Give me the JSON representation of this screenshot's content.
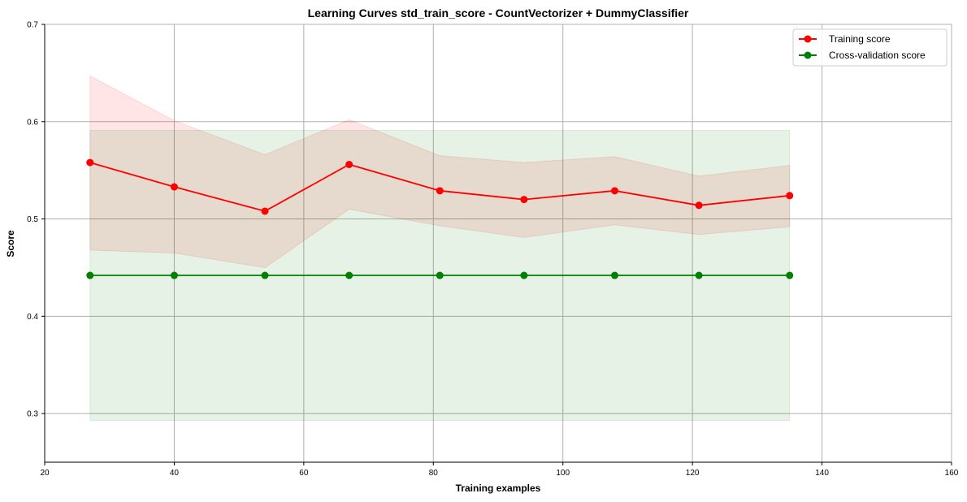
{
  "chart_data": {
    "type": "line",
    "title": "Learning Curves std_train_score - CountVectorizer + DummyClassifier",
    "xlabel": "Training examples",
    "ylabel": "Score",
    "xlim": [
      20,
      160
    ],
    "ylim": [
      0.25,
      0.7
    ],
    "xticks": [
      20,
      40,
      60,
      80,
      100,
      120,
      140,
      160
    ],
    "yticks": [
      0.3,
      0.4,
      0.5,
      0.6,
      0.7
    ],
    "grid": true,
    "legend_position": "top-right",
    "x": [
      27,
      40,
      54,
      67,
      81,
      94,
      108,
      121,
      135
    ],
    "series": [
      {
        "name": "Training score",
        "color": "#ff0000",
        "band_color": "#ff0000",
        "values": [
          0.558,
          0.533,
          0.508,
          0.556,
          0.529,
          0.52,
          0.529,
          0.514,
          0.524
        ],
        "band_upper": [
          0.647,
          0.601,
          0.566,
          0.602,
          0.565,
          0.558,
          0.564,
          0.544,
          0.555
        ],
        "band_lower": [
          0.468,
          0.465,
          0.45,
          0.51,
          0.493,
          0.481,
          0.494,
          0.484,
          0.492
        ]
      },
      {
        "name": "Cross-validation score",
        "color": "#008000",
        "band_color": "#008000",
        "values": [
          0.442,
          0.442,
          0.442,
          0.442,
          0.442,
          0.442,
          0.442,
          0.442,
          0.442
        ],
        "band_upper": [
          0.591,
          0.591,
          0.591,
          0.591,
          0.591,
          0.591,
          0.591,
          0.591,
          0.591
        ],
        "band_lower": [
          0.293,
          0.293,
          0.293,
          0.293,
          0.293,
          0.293,
          0.293,
          0.293,
          0.293
        ]
      }
    ]
  }
}
